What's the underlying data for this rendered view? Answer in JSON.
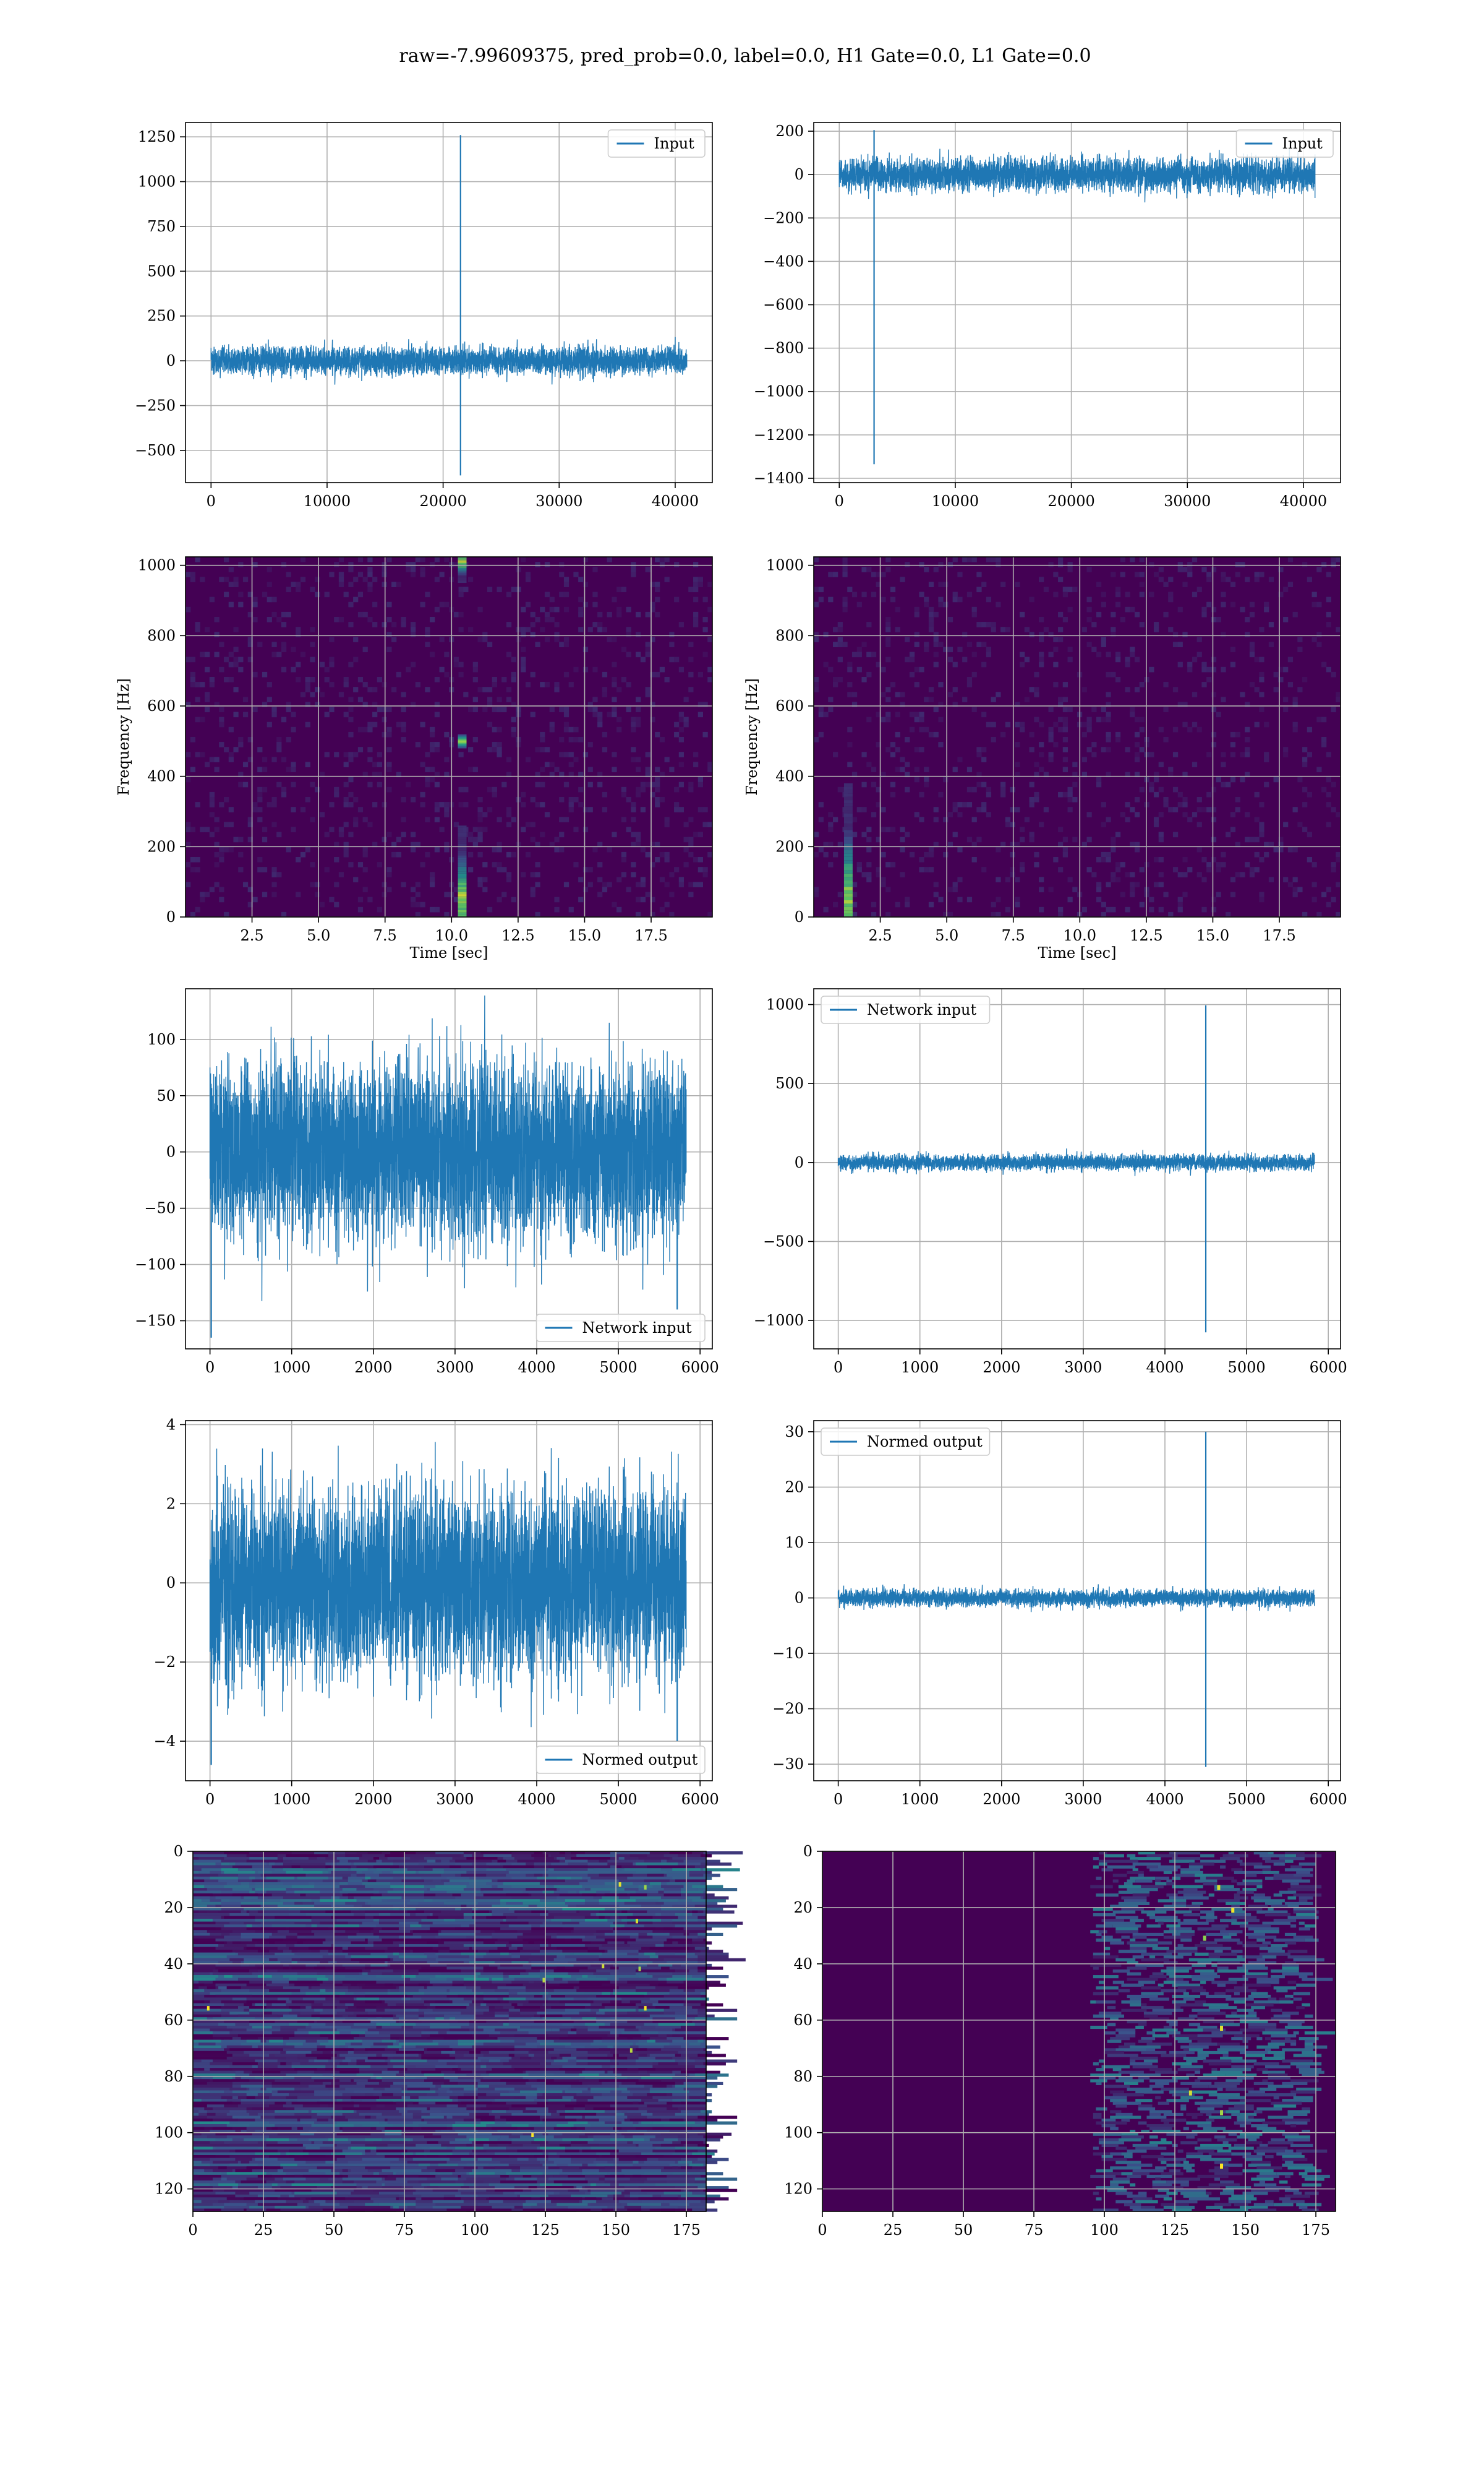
{
  "suptitle": "raw=-7.99609375, pred_prob=0.0, label=0.0, H1 Gate=0.0, L1 Gate=0.0",
  "colors": {
    "line": "#1f77b4",
    "grid": "#b0b0b0",
    "viridis_dark": "#440154",
    "viridis_teal": "#21918c",
    "viridis_green": "#5ec962",
    "viridis_yellow": "#fde725"
  },
  "chart_data": [
    {
      "type": "line",
      "panel": "row1-left",
      "series": [
        {
          "name": "Input",
          "noise_amplitude": 60,
          "spikes": [
            {
              "x": 21500,
              "min": -640,
              "max": 1260
            }
          ]
        }
      ],
      "x_range": [
        0,
        41000
      ],
      "xlim": [
        -2200,
        43200
      ],
      "ylim": [
        -680,
        1330
      ],
      "xticks": [
        0,
        10000,
        20000,
        30000,
        40000
      ],
      "xtick_labels": [
        "0",
        "10000",
        "20000",
        "30000",
        "40000"
      ],
      "yticks": [
        -500,
        -250,
        0,
        250,
        500,
        750,
        1000,
        1250
      ],
      "ytick_labels": [
        "−500",
        "−250",
        "0",
        "250",
        "500",
        "750",
        "1000",
        "1250"
      ],
      "legend": "upper right",
      "grid": true
    },
    {
      "type": "line",
      "panel": "row1-right",
      "series": [
        {
          "name": "Input",
          "noise_amplitude": 60,
          "spikes": [
            {
              "x": 3000,
              "min": -1335,
              "max": 205
            }
          ]
        }
      ],
      "x_range": [
        0,
        41000
      ],
      "xlim": [
        -2200,
        43200
      ],
      "ylim": [
        -1420,
        240
      ],
      "xticks": [
        0,
        10000,
        20000,
        30000,
        40000
      ],
      "xtick_labels": [
        "0",
        "10000",
        "20000",
        "30000",
        "40000"
      ],
      "yticks": [
        -1400,
        -1200,
        -1000,
        -800,
        -600,
        -400,
        -200,
        0,
        200
      ],
      "ytick_labels": [
        "−1400",
        "−1200",
        "−1000",
        "−800",
        "−600",
        "−400",
        "−200",
        "0",
        "200"
      ],
      "legend": "upper right",
      "grid": true
    },
    {
      "type": "heatmap",
      "panel": "row2-left",
      "xlabel": "Time [sec]",
      "ylabel": "Frequency [Hz]",
      "xlim": [
        0,
        19.8
      ],
      "ylim": [
        0,
        1024
      ],
      "xticks": [
        2.5,
        5.0,
        7.5,
        10.0,
        12.5,
        15.0,
        17.5
      ],
      "xtick_labels": [
        "2.5",
        "5.0",
        "7.5",
        "10.0",
        "12.5",
        "15.0",
        "17.5"
      ],
      "yticks": [
        0,
        200,
        400,
        600,
        800,
        1000
      ],
      "ytick_labels": [
        "0",
        "200",
        "400",
        "600",
        "800",
        "1000"
      ],
      "features": [
        {
          "t": 10.4,
          "f_min": 0,
          "f_max": 260,
          "peak_f": 50
        },
        {
          "t": 10.4,
          "f_min": 480,
          "f_max": 520,
          "peak_f": 500
        },
        {
          "t": 10.4,
          "f_min": 950,
          "f_max": 1024,
          "peak_f": 1010
        }
      ],
      "grid": true
    },
    {
      "type": "heatmap",
      "panel": "row2-right",
      "xlabel": "Time [sec]",
      "ylabel": "Frequency [Hz]",
      "xlim": [
        0,
        19.8
      ],
      "ylim": [
        0,
        1024
      ],
      "xticks": [
        2.5,
        5.0,
        7.5,
        10.0,
        12.5,
        15.0,
        17.5
      ],
      "xtick_labels": [
        "2.5",
        "5.0",
        "7.5",
        "10.0",
        "12.5",
        "15.0",
        "17.5"
      ],
      "yticks": [
        0,
        200,
        400,
        600,
        800,
        1000
      ],
      "ytick_labels": [
        "0",
        "200",
        "400",
        "600",
        "800",
        "1000"
      ],
      "features": [
        {
          "t": 1.3,
          "f_min": 0,
          "f_max": 380,
          "peak_f": 50
        }
      ],
      "grid": true
    },
    {
      "type": "line",
      "panel": "row3-left",
      "series": [
        {
          "name": "Network input",
          "noise_amplitude": 62,
          "spikes": [
            {
              "x": 15,
              "min": -165,
              "max": 20
            },
            {
              "x": 5720,
              "min": -140,
              "max": 30
            }
          ]
        }
      ],
      "x_range": [
        0,
        5830
      ],
      "xlim": [
        -300,
        6150
      ],
      "ylim": [
        -175,
        145
      ],
      "xticks": [
        0,
        1000,
        2000,
        3000,
        4000,
        5000,
        6000
      ],
      "xtick_labels": [
        "0",
        "1000",
        "2000",
        "3000",
        "4000",
        "5000",
        "6000"
      ],
      "yticks": [
        -150,
        -100,
        -50,
        0,
        50,
        100
      ],
      "ytick_labels": [
        "−150",
        "−100",
        "−50",
        "0",
        "50",
        "100"
      ],
      "legend": "lower right",
      "grid": true
    },
    {
      "type": "line",
      "panel": "row3-right",
      "series": [
        {
          "name": "Network input",
          "noise_amplitude": 40,
          "spikes": [
            {
              "x": 4500,
              "min": -1075,
              "max": 995
            }
          ]
        }
      ],
      "x_range": [
        0,
        5830
      ],
      "xlim": [
        -300,
        6150
      ],
      "ylim": [
        -1180,
        1100
      ],
      "xticks": [
        0,
        1000,
        2000,
        3000,
        4000,
        5000,
        6000
      ],
      "xtick_labels": [
        "0",
        "1000",
        "2000",
        "3000",
        "4000",
        "5000",
        "6000"
      ],
      "yticks": [
        -1000,
        -500,
        0,
        500,
        1000
      ],
      "ytick_labels": [
        "−1000",
        "−500",
        "0",
        "500",
        "1000"
      ],
      "legend": "upper left",
      "grid": true
    },
    {
      "type": "line",
      "panel": "row4-left",
      "series": [
        {
          "name": "Normed output",
          "noise_amplitude": 1.9,
          "spikes": [
            {
              "x": 15,
              "min": -4.6,
              "max": 0.5
            },
            {
              "x": 5720,
              "min": -4.0,
              "max": 0.8
            }
          ]
        }
      ],
      "x_range": [
        0,
        5830
      ],
      "xlim": [
        -300,
        6150
      ],
      "ylim": [
        -5.0,
        4.1
      ],
      "xticks": [
        0,
        1000,
        2000,
        3000,
        4000,
        5000,
        6000
      ],
      "xtick_labels": [
        "0",
        "1000",
        "2000",
        "3000",
        "4000",
        "5000",
        "6000"
      ],
      "yticks": [
        -4,
        -2,
        0,
        2,
        4
      ],
      "ytick_labels": [
        "−4",
        "−2",
        "0",
        "2",
        "4"
      ],
      "legend": "lower right",
      "grid": true
    },
    {
      "type": "line",
      "panel": "row4-right",
      "series": [
        {
          "name": "Normed output",
          "noise_amplitude": 1.2,
          "spikes": [
            {
              "x": 4500,
              "min": -30.5,
              "max": 30
            }
          ]
        }
      ],
      "x_range": [
        0,
        5830
      ],
      "xlim": [
        -300,
        6150
      ],
      "ylim": [
        -33,
        32
      ],
      "xticks": [
        0,
        1000,
        2000,
        3000,
        4000,
        5000,
        6000
      ],
      "xtick_labels": [
        "0",
        "1000",
        "2000",
        "3000",
        "4000",
        "5000",
        "6000"
      ],
      "yticks": [
        -30,
        -20,
        -10,
        0,
        10,
        20,
        30
      ],
      "ytick_labels": [
        "−30",
        "−20",
        "−10",
        "0",
        "10",
        "20",
        "30"
      ],
      "legend": "upper left",
      "grid": true
    },
    {
      "type": "heatmap",
      "panel": "row5-left",
      "rows": 128,
      "cols": 182,
      "xlim": [
        0,
        182
      ],
      "ylim": [
        128,
        0
      ],
      "xticks": [
        0,
        25,
        50,
        75,
        100,
        125,
        150,
        175
      ],
      "xtick_labels": [
        "0",
        "25",
        "50",
        "75",
        "100",
        "125",
        "150",
        "175"
      ],
      "yticks": [
        0,
        20,
        40,
        60,
        80,
        100,
        120
      ],
      "ytick_labels": [
        "0",
        "20",
        "40",
        "60",
        "80",
        "100",
        "120"
      ],
      "pattern": "horizontal bands with scattered bright cells; brightest near x 150-165, y 10-30",
      "grid": true
    },
    {
      "type": "heatmap",
      "panel": "row5-right",
      "rows": 128,
      "cols": 182,
      "xlim": [
        0,
        182
      ],
      "ylim": [
        128,
        0
      ],
      "xticks": [
        0,
        25,
        50,
        75,
        100,
        125,
        150,
        175
      ],
      "xtick_labels": [
        "0",
        "25",
        "50",
        "75",
        "100",
        "125",
        "150",
        "175"
      ],
      "yticks": [
        0,
        20,
        40,
        60,
        80,
        100,
        120
      ],
      "ytick_labels": [
        "0",
        "20",
        "40",
        "60",
        "80",
        "100",
        "120"
      ],
      "pattern": "dark background with activity concentrated at x 100-170; bright cells near x 140",
      "grid": true
    }
  ]
}
